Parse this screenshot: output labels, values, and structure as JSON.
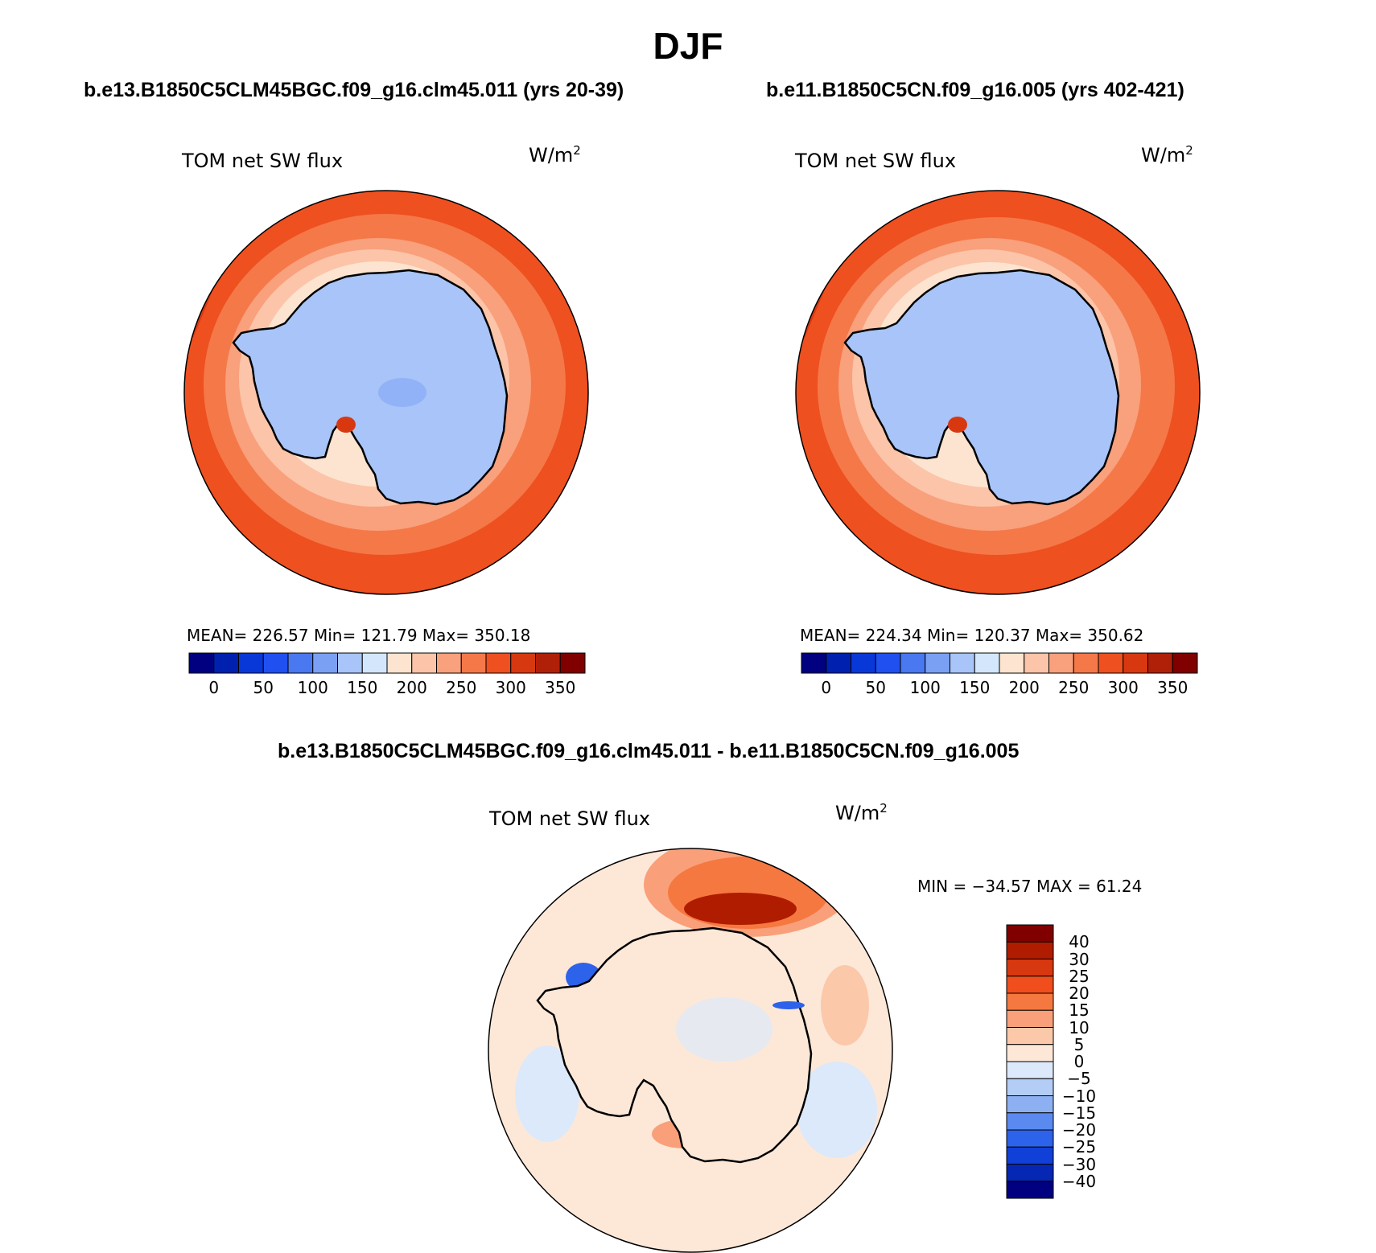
{
  "title": "DJF",
  "panels": [
    {
      "case_title": "b.e13.B1850C5CLM45BGC.f09_g16.clm45.011 (yrs 20-39)",
      "plot_title": "TOM net SW flux",
      "units_text": "W/m",
      "units_exp": "2",
      "stats": {
        "mean": "226.57",
        "min": "121.79",
        "max": "350.18"
      },
      "stats_text": "MEAN= 226.57   Min= 121.79   Max= 350.18"
    },
    {
      "case_title": "b.e11.B1850C5CN.f09_g16.005 (yrs 402-421)",
      "plot_title": "TOM net SW flux",
      "units_text": "W/m",
      "units_exp": "2",
      "stats": {
        "mean": "224.34",
        "min": "120.37",
        "max": "350.62"
      },
      "stats_text": "MEAN= 224.34   Min= 120.37   Max= 350.62"
    }
  ],
  "abs_colorbar": {
    "colors": [
      "#000080",
      "#0020b0",
      "#0838d8",
      "#2050f0",
      "#4a78f0",
      "#7aa0f4",
      "#a8c4f8",
      "#d4e6fb",
      "#fde4d0",
      "#fcc4a8",
      "#f9a07c",
      "#f57848",
      "#ee5020",
      "#d83810",
      "#b02008",
      "#800000"
    ],
    "tick_labels": [
      "0",
      "50",
      "100",
      "150",
      "200",
      "250",
      "300",
      "350"
    ]
  },
  "diff_panel": {
    "case_title": "b.e13.B1850C5CLM45BGC.f09_g16.clm45.011 - b.e11.B1850C5CN.f09_g16.005",
    "plot_title": "TOM net SW flux",
    "units_text": "W/m",
    "units_exp": "2",
    "stats": {
      "min": "-34.57",
      "max": "61.24"
    },
    "stats_text": "MIN = −34.57 MAX =  61.24"
  },
  "diff_colorbar": {
    "colors": [
      "#800000",
      "#b01c00",
      "#d83810",
      "#f04e1c",
      "#f57840",
      "#f9a07a",
      "#fcc8aa",
      "#fde8d8",
      "#dce9fa",
      "#b4cdf6",
      "#8cb0f2",
      "#5a8af0",
      "#2d62ea",
      "#1040d8",
      "#0626b4",
      "#000080"
    ],
    "tick_labels": [
      "40",
      "30",
      "25",
      "20",
      "15",
      "10",
      "5",
      "0",
      "−5",
      "−10",
      "−15",
      "−20",
      "−25",
      "−30",
      "−40"
    ]
  },
  "regions": {
    "continent": "Antarctica",
    "view": "South Polar Stereographic"
  }
}
